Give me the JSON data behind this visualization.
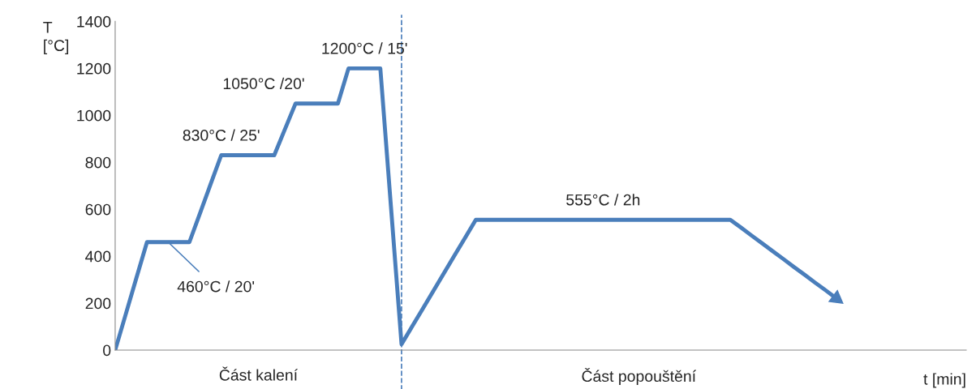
{
  "chart_data": {
    "type": "line",
    "ylabel": "T\n[°C]",
    "categories": [
      null,
      null,
      null,
      null,
      null,
      null,
      null,
      null,
      null,
      null,
      null,
      null,
      null,
      null,
      null,
      null,
      null,
      null,
      null,
      null,
      null,
      null,
      null,
      null,
      null,
      null,
      null,
      null,
      null,
      null,
      null,
      null,
      null,
      null,
      null,
      null,
      null,
      null,
      null,
      null,
      null,
      null,
      null,
      null,
      null,
      null,
      null,
      null,
      null,
      null,
      null,
      null,
      null,
      null,
      null,
      null,
      null,
      null,
      null,
      null,
      null,
      null,
      null,
      null,
      null,
      null,
      null,
      null,
      null
    ],
    "series": [
      {
        "color": "#4a7ebb",
        "values": [
          0,
          153,
          307,
          460,
          460,
          460,
          460,
          460,
          583,
          707,
          830,
          830,
          830,
          830,
          830,
          830,
          940,
          1050,
          1050,
          1050,
          1050,
          1050,
          1200,
          1200,
          1200,
          1200,
          612,
          25,
          101,
          176,
          252,
          328,
          404,
          479,
          555,
          555,
          555,
          555,
          555,
          555,
          555,
          555,
          555,
          555,
          555,
          555,
          555,
          555,
          555,
          555,
          555,
          555,
          555,
          555,
          555,
          555,
          555,
          555,
          555,
          522,
          488,
          455,
          421,
          388,
          354,
          321,
          287,
          254,
          220
        ]
      }
    ],
    "ylim": [
      0,
      1400
    ],
    "yticks": [
      0,
      200,
      400,
      600,
      800,
      1000,
      1200,
      1400
    ],
    "tick_labels": "y",
    "grid": false,
    "legend": false,
    "marker": "none",
    "line_style": "solid",
    "annotations": [
      "460°C / 20'",
      "830°C / 25'",
      "1050°C /20'",
      "1200°C / 15'",
      "555°C / 2h",
      "Část kalení",
      "Část popouštění",
      "t [min]"
    ]
  }
}
